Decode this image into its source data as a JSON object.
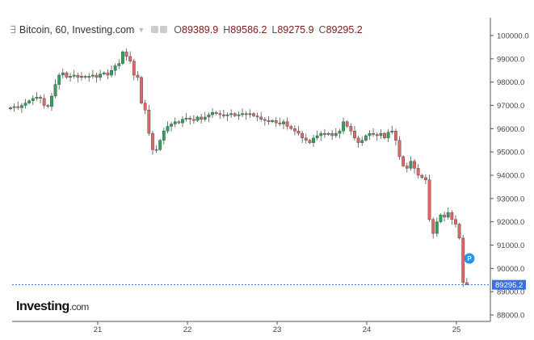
{
  "header": {
    "menu_icon": "collapse-icon",
    "title": "Bitcoin, 60, Investing.com",
    "open_label": "O",
    "open": "89389.9",
    "high_label": "H",
    "high": "89586.2",
    "low_label": "L",
    "low": "89275.9",
    "close_label": "C",
    "close": "89295.2"
  },
  "logo": {
    "brand": "Investing",
    "suffix": ".com"
  },
  "marker": {
    "label": "P"
  },
  "colors": {
    "up": "#26a65b",
    "down": "#e06666",
    "last_price": "#3d6fe0",
    "marker": "#2196f3"
  },
  "chart_data": {
    "type": "candlestick",
    "title": "Bitcoin, 60, Investing.com",
    "interval": "60",
    "ylim": [
      87700,
      100400
    ],
    "yticks": [
      "100000.0",
      "99000.0",
      "98000.0",
      "97000.0",
      "96000.0",
      "95000.0",
      "94000.0",
      "93000.0",
      "92000.0",
      "91000.0",
      "90000.0",
      "89000.0",
      "88000.0"
    ],
    "xticks": [
      "21",
      "22",
      "23",
      "24",
      "25"
    ],
    "last_price": "89295.2",
    "last_candle": {
      "open": 89389.9,
      "high": 89586.2,
      "low": 89275.9,
      "close": 89295.2
    },
    "closes": [
      96900,
      96950,
      96900,
      97000,
      97100,
      97200,
      97300,
      97350,
      97300,
      97000,
      96950,
      97400,
      97900,
      98300,
      98400,
      98200,
      98250,
      98300,
      98200,
      98250,
      98200,
      98250,
      98300,
      98200,
      98350,
      98400,
      98300,
      98500,
      98700,
      98800,
      99300,
      99100,
      98900,
      98300,
      98200,
      97100,
      96800,
      95800,
      95100,
      95100,
      95500,
      95900,
      96100,
      96200,
      96300,
      96250,
      96400,
      96450,
      96400,
      96350,
      96500,
      96400,
      96500,
      96600,
      96700,
      96650,
      96600,
      96550,
      96600,
      96650,
      96550,
      96600,
      96650,
      96600,
      96650,
      96550,
      96500,
      96400,
      96350,
      96300,
      96350,
      96250,
      96200,
      96300,
      96100,
      96000,
      95900,
      95800,
      95600,
      95500,
      95400,
      95600,
      95700,
      95800,
      95750,
      95800,
      95700,
      95800,
      95900,
      96300,
      96100,
      95900,
      95600,
      95400,
      95500,
      95700,
      95800,
      95750,
      95700,
      95800,
      95600,
      95850,
      95900,
      95500,
      94800,
      94400,
      94300,
      94600,
      94300,
      94000,
      93900,
      93800,
      92100,
      91500,
      92000,
      92300,
      92200,
      92400,
      92100,
      91900,
      91300,
      89389.9,
      89295.2
    ]
  }
}
